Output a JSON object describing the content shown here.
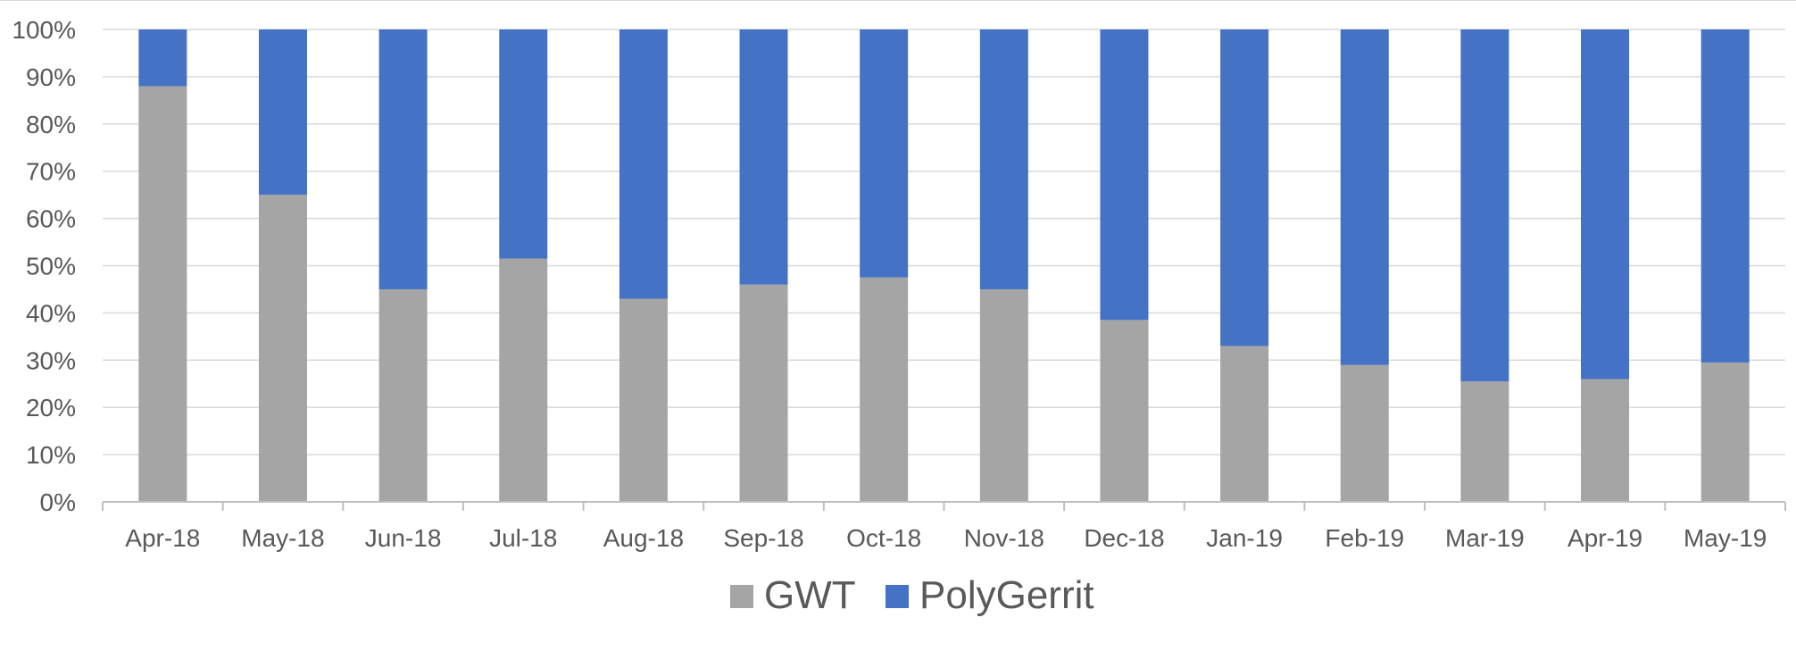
{
  "chart_data": {
    "type": "bar",
    "stacked": true,
    "title": "",
    "xlabel": "",
    "ylabel": "",
    "ylim": [
      0,
      100
    ],
    "y_ticks": [
      "0%",
      "10%",
      "20%",
      "30%",
      "40%",
      "50%",
      "60%",
      "70%",
      "80%",
      "90%",
      "100%"
    ],
    "categories": [
      "Apr-18",
      "May-18",
      "Jun-18",
      "Jul-18",
      "Aug-18",
      "Sep-18",
      "Oct-18",
      "Nov-18",
      "Dec-18",
      "Jan-19",
      "Feb-19",
      "Mar-19",
      "Apr-19",
      "May-19"
    ],
    "series": [
      {
        "name": "GWT",
        "color": "#a5a5a5",
        "values": [
          88,
          65,
          45,
          51.5,
          43,
          46,
          47.5,
          45,
          38.5,
          33,
          29,
          25.5,
          26,
          29.5
        ]
      },
      {
        "name": "PolyGerrit",
        "color": "#4472c4",
        "values": [
          12,
          35,
          55,
          48.5,
          57,
          54,
          52.5,
          55,
          61.5,
          67,
          71,
          74.5,
          74,
          70.5
        ]
      }
    ],
    "grid": true,
    "legend_position": "bottom"
  }
}
